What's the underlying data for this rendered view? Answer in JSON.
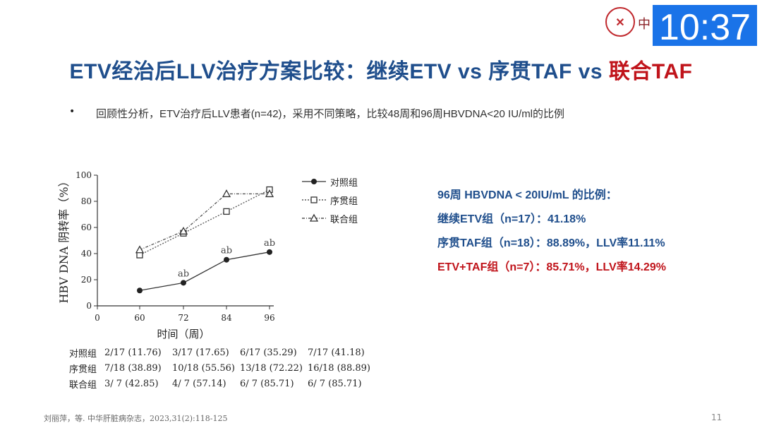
{
  "header": {
    "logo_icon": "hospital-logo-icon",
    "logo_text": "中",
    "clock_time": "10:37"
  },
  "slide": {
    "title_main": "ETV经治后LLV治疗方案比较：继续ETV vs 序贯TAF vs ",
    "title_highlight": "联合TAF",
    "bullet": "回顾性分析，ETV治疗后LLV患者(n=42)，采用不同策略，比较48周和96周HBVDNA<20 IU/ml的比例",
    "citation": "刘丽萍，等. 中华肝脏病杂志，2023,31(2):118-125",
    "page_number": "11",
    "colors": {
      "title_blue": "#1f4e8c",
      "highlight_red": "#c0141b"
    }
  },
  "results": {
    "heading": "96周 HBVDNA < 20IU/mL 的比例：",
    "line1": "继续ETV组（n=17）：41.18%",
    "line2": "序贯TAF组（n=18）：88.89%，LLV率11.11%",
    "line3": "ETV+TAF组（n=7）：85.71%，LLV率14.29%"
  },
  "chart_data": {
    "type": "line",
    "xlabel": "时间（周）",
    "ylabel": "HBV DNA 阴转率（%）",
    "x": [
      0,
      60,
      72,
      84,
      96
    ],
    "ylim": [
      0,
      100
    ],
    "yticks": [
      0,
      20,
      40,
      60,
      80,
      100
    ],
    "series": [
      {
        "name": "对照组",
        "marker": "filled-circle",
        "line": "solid",
        "x": [
          60,
          72,
          84,
          96
        ],
        "values": [
          11.76,
          17.65,
          35.29,
          41.18
        ]
      },
      {
        "name": "序贯组",
        "marker": "open-square",
        "line": "dotted",
        "x": [
          60,
          72,
          84,
          96
        ],
        "values": [
          38.89,
          55.56,
          72.22,
          88.89
        ]
      },
      {
        "name": "联合组",
        "marker": "open-triangle",
        "line": "dash-dot",
        "x": [
          60,
          72,
          84,
          96
        ],
        "values": [
          42.85,
          57.14,
          85.71,
          85.71
        ]
      }
    ],
    "annotations": [
      {
        "text": "ab",
        "x": 72,
        "y": 17.65
      },
      {
        "text": "ab",
        "x": 84,
        "y": 35.29
      },
      {
        "text": "ab",
        "x": 96,
        "y": 41.18
      }
    ],
    "legend_position": "right",
    "table": {
      "rows": [
        {
          "name": "对照组",
          "cells": [
            "2/17 (11.76)",
            "3/17 (17.65)",
            "6/17 (35.29)",
            "7/17 (41.18)"
          ]
        },
        {
          "name": "序贯组",
          "cells": [
            "7/18 (38.89)",
            "10/18 (55.56)",
            "13/18 (72.22)",
            "16/18 (88.89)"
          ]
        },
        {
          "name": "联合组",
          "cells": [
            "3/ 7 (42.85)",
            "4/ 7 (57.14)",
            "6/ 7 (85.71)",
            "6/ 7 (85.71)"
          ]
        }
      ]
    }
  }
}
